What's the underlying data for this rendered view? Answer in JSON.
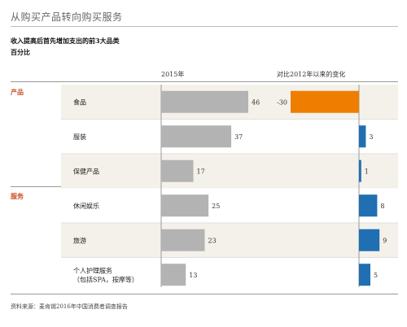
{
  "header": {
    "title": "从购买产品转向购买服务",
    "subtitle": "收入提高后首先增加支出的前3大品类",
    "unit": "百分比"
  },
  "columns": {
    "left": "2015年",
    "right": "对比2012年以来的变化"
  },
  "groups": [
    {
      "label": "产品"
    },
    {
      "label": "服务"
    }
  ],
  "footer": {
    "source": "资料来源：麦肯锡2016年中国消费者调查报告"
  },
  "colors": {
    "bar_2015": "#b3b3b3",
    "change_negative": "#ef7d00",
    "change_positive": "#1f6fb2",
    "row_band": "#f4f1ea",
    "group_label": "#c8512a"
  },
  "chart_data": {
    "type": "bar",
    "title": "收入提高后首先增加支出的前3大品类",
    "unit": "百分比",
    "categories": [
      "食品",
      "服装",
      "保健产品",
      "休闲娱乐",
      "旅游",
      "个人护理服务（包括SPA、按摩等）"
    ],
    "category_lines": [
      [
        "食品"
      ],
      [
        "服装"
      ],
      [
        "保健产品"
      ],
      [
        "休闲娱乐"
      ],
      [
        "旅游"
      ],
      [
        "个人护理服务",
        "（包括SPA，按摩等）"
      ]
    ],
    "category_groups": [
      "产品",
      "产品",
      "产品",
      "服务",
      "服务",
      "服务"
    ],
    "series": [
      {
        "name": "2015年",
        "values": [
          46,
          37,
          17,
          25,
          23,
          13
        ]
      },
      {
        "name": "对比2012年以来的变化",
        "values": [
          -30,
          3,
          1,
          8,
          9,
          5
        ]
      }
    ],
    "value_labels": [
      [
        "46",
        "37",
        "17",
        "25",
        "23",
        "13"
      ],
      [
        "-30",
        "3",
        "1",
        "8",
        "9",
        "5"
      ]
    ]
  }
}
